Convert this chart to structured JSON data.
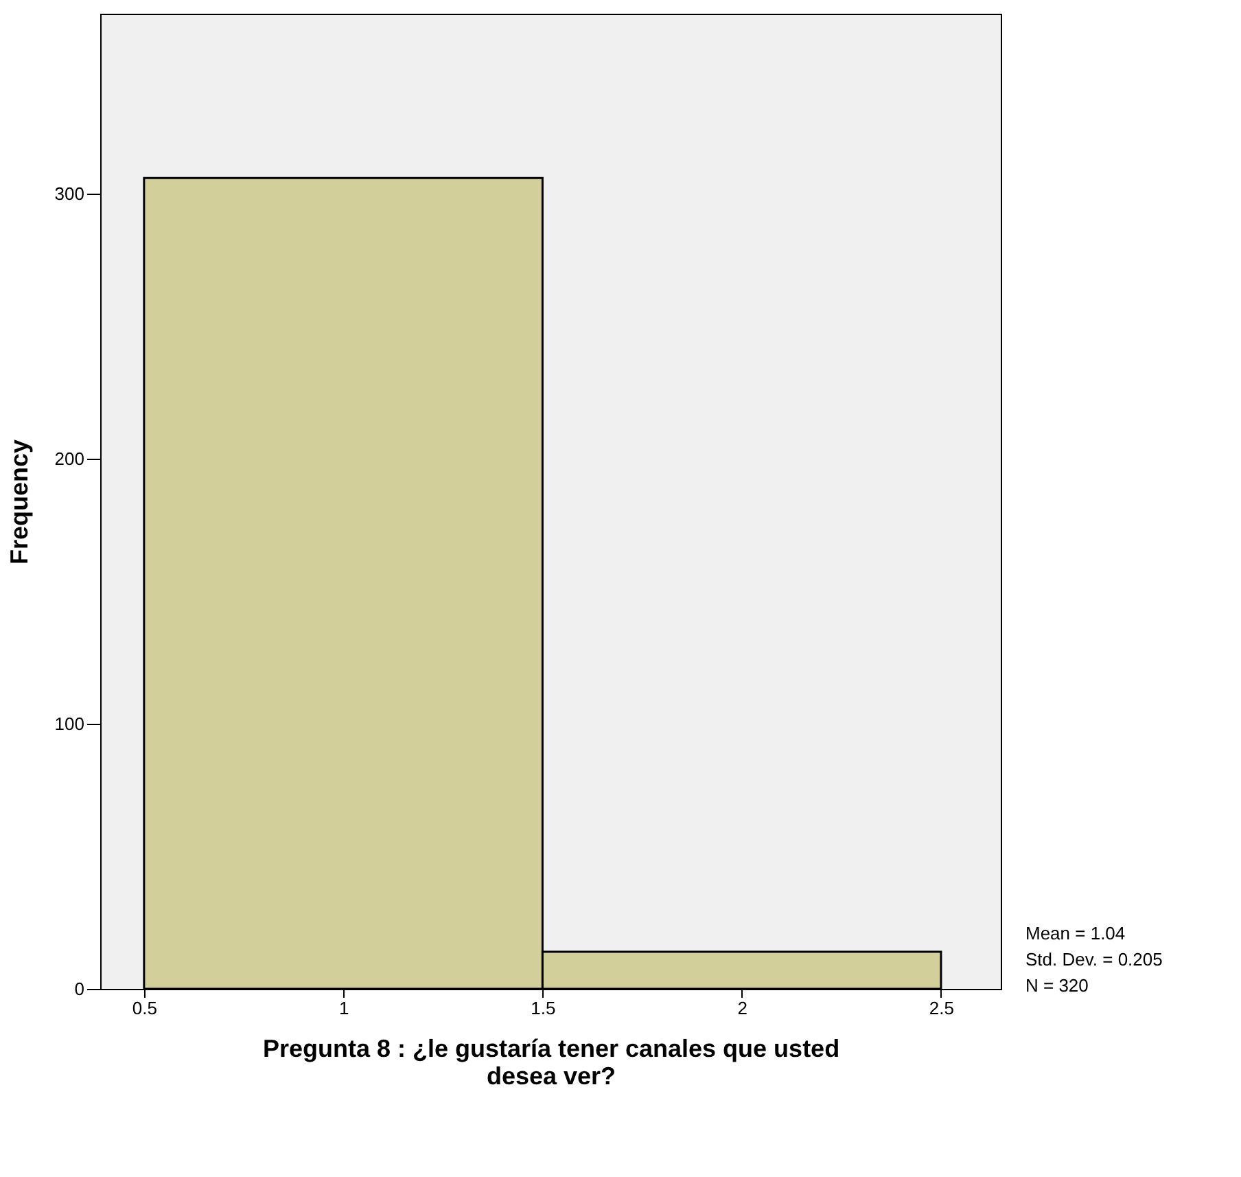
{
  "chart_data": {
    "type": "histogram",
    "bins": [
      0.5,
      1.5,
      2.5
    ],
    "values": [
      306,
      14
    ],
    "color": "#d3cf9a",
    "xlabel": "Pregunta 8 : ¿le gustaría tener canales que usted desea ver?",
    "ylabel": "Frequency",
    "xlim": [
      0.39,
      2.65
    ],
    "ylim": [
      0,
      368
    ],
    "xticks": [
      0.5,
      1,
      1.5,
      2,
      2.5
    ],
    "yticks": [
      0,
      100,
      200,
      300
    ],
    "grid": false,
    "annotations": [
      "Mean = 1.04",
      "Std. Dev. = 0.205",
      "N = 320"
    ]
  }
}
